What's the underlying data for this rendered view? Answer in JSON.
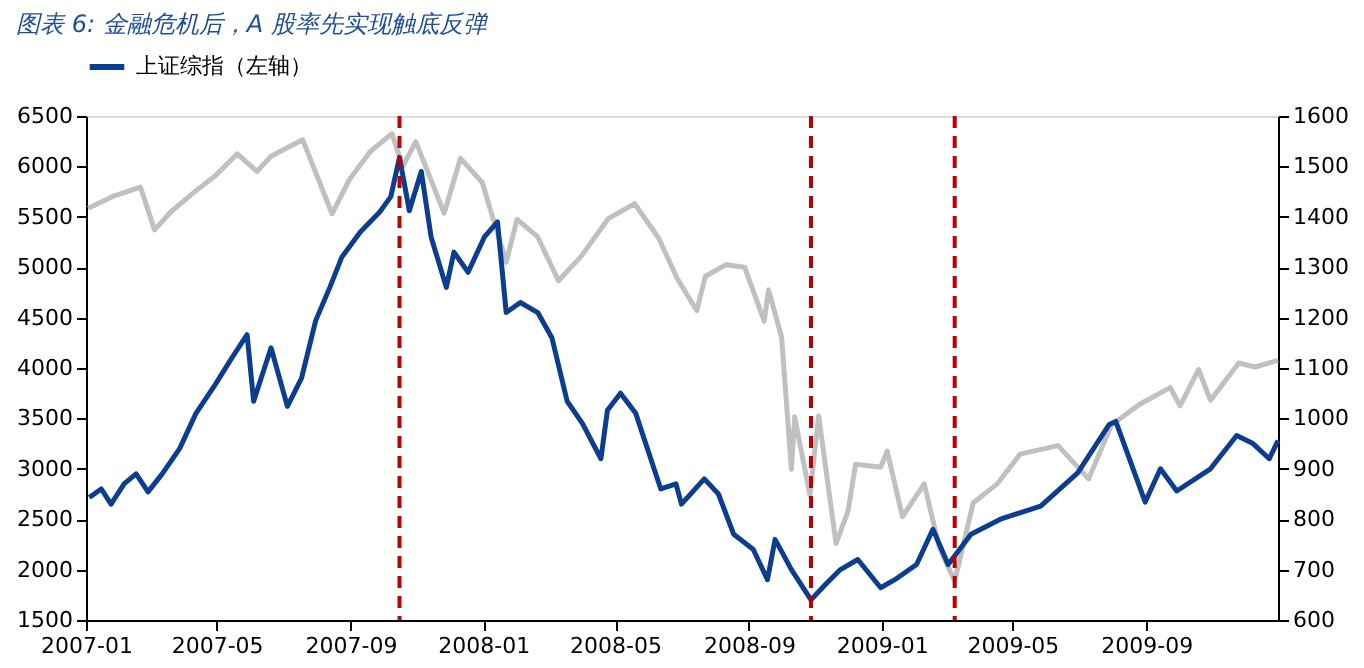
{
  "chart_data": {
    "type": "line",
    "title": "图表 6: 金融危机后，A 股率先实现触底反弹",
    "xlim": [
      "2007-01-01",
      "2009-12-31"
    ],
    "xticks": [
      {
        "value": "2007-01-01",
        "label": "2007-01"
      },
      {
        "value": "2007-05-01",
        "label": "2007-05"
      },
      {
        "value": "2007-09-01",
        "label": "2007-09"
      },
      {
        "value": "2008-01-01",
        "label": "2008-01"
      },
      {
        "value": "2008-05-01",
        "label": "2008-05"
      },
      {
        "value": "2008-09-01",
        "label": "2008-09"
      },
      {
        "value": "2009-01-01",
        "label": "2009-01"
      },
      {
        "value": "2009-05-01",
        "label": "2009-05"
      },
      {
        "value": "2009-09-01",
        "label": "2009-09"
      }
    ],
    "ylim": [
      1500,
      6500
    ],
    "yticks": [
      1500,
      2000,
      2500,
      3000,
      3500,
      4000,
      4500,
      5000,
      5500,
      6000,
      6500
    ],
    "y2lim": [
      600,
      1600
    ],
    "y2ticks": [
      600,
      700,
      800,
      900,
      1000,
      1100,
      1200,
      1300,
      1400,
      1500,
      1600
    ],
    "grid": false,
    "legend": "top",
    "series": [
      {
        "name": "上证综指（左轴）",
        "color": "#0b3d91",
        "axis": "y",
        "x": [
          "2007-01-04",
          "2007-01-15",
          "2007-01-24",
          "2007-02-05",
          "2007-02-16",
          "2007-02-27",
          "2007-03-12",
          "2007-03-28",
          "2007-04-12",
          "2007-04-30",
          "2007-05-15",
          "2007-05-29",
          "2007-06-04",
          "2007-06-20",
          "2007-07-05",
          "2007-07-18",
          "2007-07-31",
          "2007-08-13",
          "2007-08-24",
          "2007-09-10",
          "2007-09-28",
          "2007-10-08",
          "2007-10-16",
          "2007-10-25",
          "2007-11-05",
          "2007-11-14",
          "2007-11-28",
          "2007-12-05",
          "2007-12-18",
          "2008-01-02",
          "2008-01-14",
          "2008-01-22",
          "2008-02-04",
          "2008-02-20",
          "2008-03-04",
          "2008-03-18",
          "2008-04-01",
          "2008-04-18",
          "2008-04-24",
          "2008-05-06",
          "2008-05-20",
          "2008-06-12",
          "2008-06-26",
          "2008-07-01",
          "2008-07-22",
          "2008-08-04",
          "2008-08-18",
          "2008-09-05",
          "2008-09-18",
          "2008-09-25",
          "2008-10-10",
          "2008-10-28",
          "2008-11-10",
          "2008-11-24",
          "2008-12-10",
          "2008-12-31",
          "2009-01-13",
          "2009-02-02",
          "2009-02-17",
          "2009-03-03",
          "2009-03-24",
          "2009-04-20",
          "2009-05-27",
          "2009-06-30",
          "2009-07-29",
          "2009-08-04",
          "2009-08-31",
          "2009-09-14",
          "2009-09-29",
          "2009-10-30",
          "2009-11-23",
          "2009-12-08",
          "2009-12-23",
          "2009-12-31"
        ],
        "values": [
          2715,
          2800,
          2650,
          2850,
          2950,
          2771,
          2950,
          3200,
          3550,
          3840,
          4100,
          4330,
          3670,
          4200,
          3620,
          3900,
          4470,
          4800,
          5100,
          5350,
          5550,
          5700,
          6090,
          5560,
          5950,
          5300,
          4800,
          5150,
          4950,
          5300,
          5450,
          4550,
          4650,
          4550,
          4300,
          3670,
          3450,
          3100,
          3580,
          3750,
          3550,
          2800,
          2850,
          2650,
          2900,
          2750,
          2350,
          2200,
          1900,
          2300,
          2000,
          1700,
          1850,
          2000,
          2100,
          1820,
          1900,
          2050,
          2400,
          2050,
          2350,
          2500,
          2630,
          2960,
          3440,
          3470,
          2670,
          3000,
          2780,
          3000,
          3330,
          3250,
          3100,
          3280
        ]
      },
      {
        "color": "#c0c0c0",
        "axis": "y2",
        "x": [
          "2007-01-03",
          "2007-01-25",
          "2007-02-20",
          "2007-03-05",
          "2007-03-20",
          "2007-04-10",
          "2007-04-30",
          "2007-05-20",
          "2007-06-07",
          "2007-06-20",
          "2007-07-19",
          "2007-08-15",
          "2007-08-31",
          "2007-09-19",
          "2007-10-09",
          "2007-10-19",
          "2007-10-31",
          "2007-11-26",
          "2007-12-11",
          "2007-12-31",
          "2008-01-22",
          "2008-02-01",
          "2008-02-20",
          "2008-03-10",
          "2008-03-31",
          "2008-04-25",
          "2008-05-19",
          "2008-06-10",
          "2008-06-27",
          "2008-07-15",
          "2008-07-23",
          "2008-08-11",
          "2008-08-28",
          "2008-09-15",
          "2008-09-19",
          "2008-10-01",
          "2008-10-10",
          "2008-10-13",
          "2008-10-27",
          "2008-11-04",
          "2008-11-20",
          "2008-12-01",
          "2008-12-08",
          "2008-12-31",
          "2009-01-06",
          "2009-01-20",
          "2009-02-09",
          "2009-02-23",
          "2009-03-09",
          "2009-03-26",
          "2009-04-17",
          "2009-05-08",
          "2009-06-12",
          "2009-07-10",
          "2009-07-31",
          "2009-08-26",
          "2009-09-23",
          "2009-10-02",
          "2009-10-19",
          "2009-10-30",
          "2009-11-25",
          "2009-12-10",
          "2009-12-31"
        ],
        "values": [
          1417,
          1440,
          1459,
          1374,
          1410,
          1448,
          1482,
          1525,
          1490,
          1520,
          1553,
          1406,
          1474,
          1529,
          1565,
          1500,
          1549,
          1407,
          1516,
          1468,
          1310,
          1395,
          1360,
          1273,
          1322,
          1397,
          1426,
          1358,
          1278,
          1214,
          1282,
          1305,
          1300,
          1193,
          1255,
          1161,
          899,
          1003,
          848,
          1005,
          752,
          816,
          909,
          903,
          935,
          805,
          870,
          743,
          677,
          832,
          870,
          929,
          946,
          880,
          987,
          1028,
          1061,
          1025,
          1097,
          1036,
          1110,
          1102,
          1115
        ]
      }
    ],
    "ref_lines": [
      {
        "axis": "x",
        "value": "2007-10-16",
        "color": "#c00000",
        "line_style": "dashed"
      },
      {
        "axis": "x",
        "value": "2008-10-28",
        "color": "#c00000",
        "line_style": "dashed"
      },
      {
        "axis": "x",
        "value": "2009-03-09",
        "color": "#c00000",
        "line_style": "dashed"
      }
    ]
  }
}
